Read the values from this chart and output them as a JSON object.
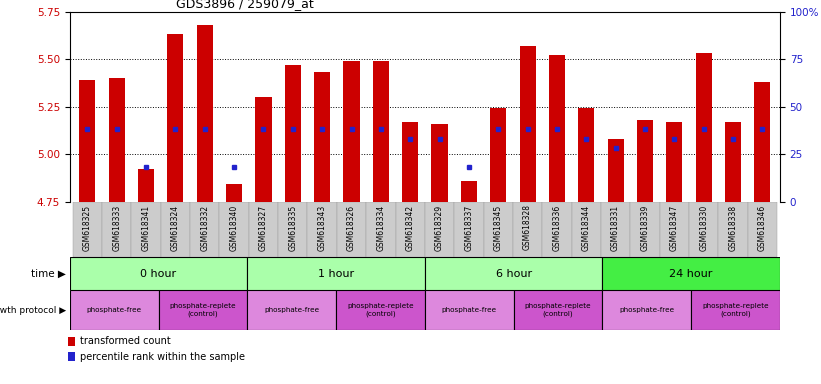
{
  "title": "GDS3896 / 259079_at",
  "samples": [
    "GSM618325",
    "GSM618333",
    "GSM618341",
    "GSM618324",
    "GSM618332",
    "GSM618340",
    "GSM618327",
    "GSM618335",
    "GSM618343",
    "GSM618326",
    "GSM618334",
    "GSM618342",
    "GSM618329",
    "GSM618337",
    "GSM618345",
    "GSM618328",
    "GSM618336",
    "GSM618344",
    "GSM618331",
    "GSM618339",
    "GSM618347",
    "GSM618330",
    "GSM618338",
    "GSM618346"
  ],
  "transformed_count": [
    5.39,
    5.4,
    4.92,
    5.63,
    5.68,
    4.84,
    5.3,
    5.47,
    5.43,
    5.49,
    5.49,
    5.17,
    5.16,
    4.86,
    5.24,
    5.57,
    5.52,
    5.24,
    5.08,
    5.18,
    5.17,
    5.53,
    5.17,
    5.38
  ],
  "percentile_rank": [
    38,
    38,
    18,
    38,
    38,
    18,
    38,
    38,
    38,
    38,
    38,
    33,
    33,
    18,
    38,
    38,
    38,
    33,
    28,
    38,
    33,
    38,
    33,
    38
  ],
  "ymin": 4.75,
  "ymax": 5.75,
  "yticks_left": [
    4.75,
    5.0,
    5.25,
    5.5,
    5.75
  ],
  "yticks_right": [
    0,
    25,
    50,
    75,
    100
  ],
  "ytick_labels_right": [
    "0",
    "25",
    "50",
    "75",
    "100%"
  ],
  "bar_color": "#cc0000",
  "marker_color": "#2222cc",
  "grid_color": "#000000",
  "bg_gray": "#cccccc",
  "time_groups": [
    {
      "label": "0 hour",
      "start": 0,
      "end": 6,
      "color": "#aaffaa"
    },
    {
      "label": "1 hour",
      "start": 6,
      "end": 12,
      "color": "#aaffaa"
    },
    {
      "label": "6 hour",
      "start": 12,
      "end": 18,
      "color": "#aaffaa"
    },
    {
      "label": "24 hour",
      "start": 18,
      "end": 24,
      "color": "#44ee44"
    }
  ],
  "protocol_groups": [
    {
      "label": "phosphate-free",
      "start": 0,
      "end": 3,
      "color": "#dd88dd"
    },
    {
      "label": "phosphate-replete\n(control)",
      "start": 3,
      "end": 6,
      "color": "#cc55cc"
    },
    {
      "label": "phosphate-free",
      "start": 6,
      "end": 9,
      "color": "#dd88dd"
    },
    {
      "label": "phosphate-replete\n(control)",
      "start": 9,
      "end": 12,
      "color": "#cc55cc"
    },
    {
      "label": "phosphate-free",
      "start": 12,
      "end": 15,
      "color": "#dd88dd"
    },
    {
      "label": "phosphate-replete\n(control)",
      "start": 15,
      "end": 18,
      "color": "#cc55cc"
    },
    {
      "label": "phosphate-free",
      "start": 18,
      "end": 21,
      "color": "#dd88dd"
    },
    {
      "label": "phosphate-replete\n(control)",
      "start": 21,
      "end": 24,
      "color": "#cc55cc"
    }
  ]
}
